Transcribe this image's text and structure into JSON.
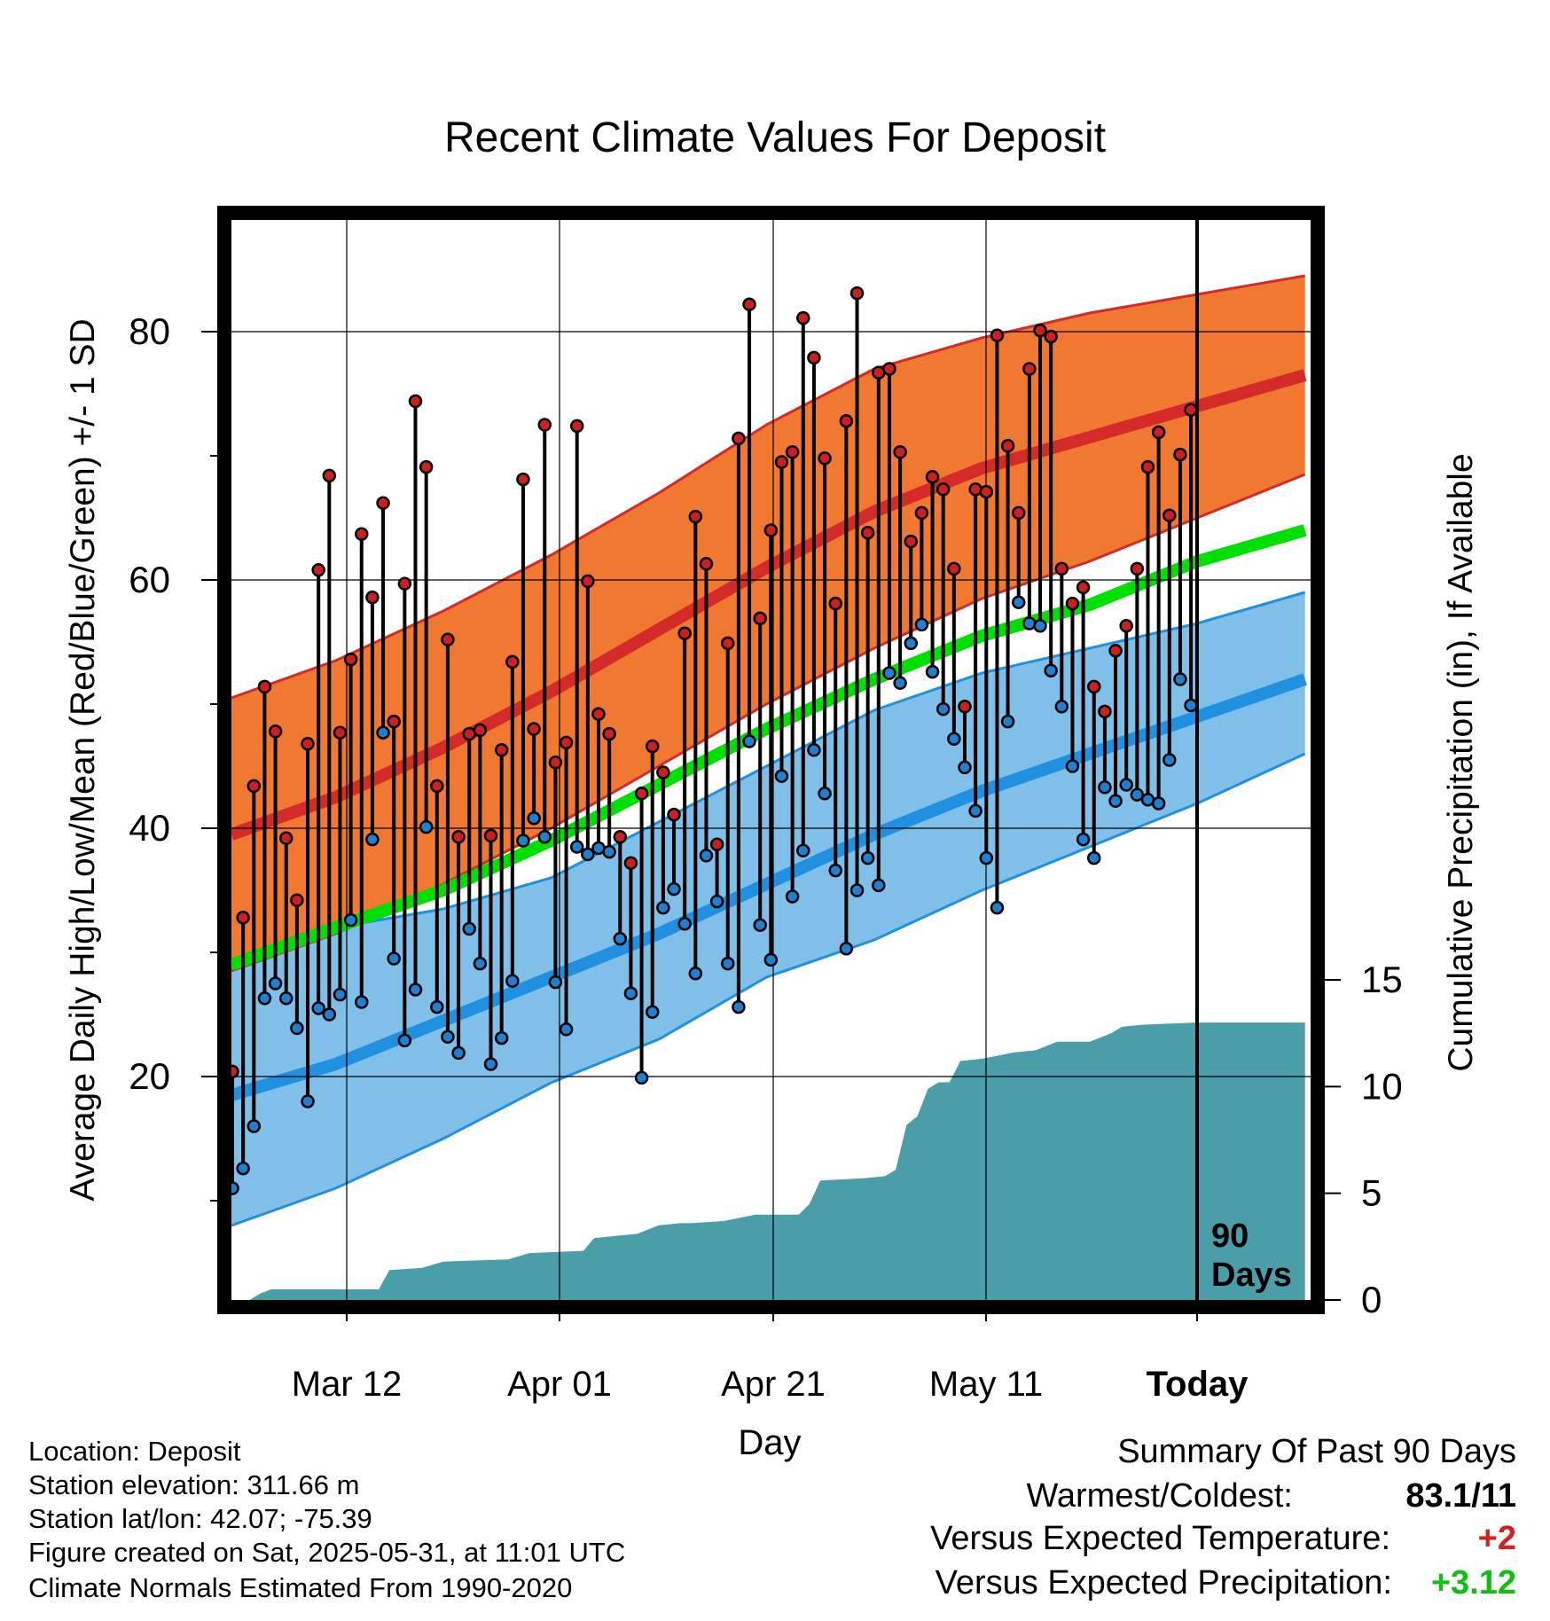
{
  "title": "Recent Climate Values For Deposit",
  "chart_data": {
    "type": "line",
    "title": "Recent Climate Values For Deposit",
    "xlabel": "Day",
    "ylabel_left": "Average Daily High/Low/Mean (Red/Blue/Green) +/- 1 SD",
    "ylabel_right": "Cumulative Precipitation (in), If Available",
    "x_ticks": [
      "Mar 12",
      "Apr 01",
      "Apr 21",
      "May 11",
      "Today"
    ],
    "y_left_ticks": [
      "20",
      "40",
      "60",
      "80"
    ],
    "y_left_range": [
      2,
      89
    ],
    "y_right_ticks": [
      "0",
      "5",
      "10",
      "15"
    ],
    "y_right_range": [
      0,
      15
    ],
    "today_marker_label": [
      "90",
      "Days"
    ],
    "colors": {
      "high_band": "#f07830",
      "high_mean": "#d42a2a",
      "high_edge": "#d42a2a",
      "low_band": "#80c0e8",
      "low_mean": "#2090e0",
      "low_edge": "#2090e0",
      "mean": "#00e000",
      "precip": "#4a9ea8",
      "high_point": "#cc2020",
      "low_point": "#2080d0"
    },
    "normals": {
      "days": [
        0,
        10,
        20,
        30,
        40,
        50,
        60,
        70,
        80,
        90,
        100
      ],
      "high_mean": [
        39.5,
        42.5,
        46.5,
        51,
        56,
        61,
        65.5,
        69,
        71.5,
        74,
        76.5
      ],
      "high_upper": [
        50.5,
        53.5,
        57.5,
        62,
        67,
        72.5,
        77,
        79.5,
        81.5,
        83,
        84.5
      ],
      "high_lower": [
        28.5,
        31.5,
        35.5,
        40,
        45,
        50,
        54.5,
        58.5,
        61.5,
        65,
        68.5
      ],
      "mean": [
        29,
        32,
        35,
        39,
        43.5,
        48,
        52,
        55.5,
        58,
        61.5,
        64
      ],
      "low_mean": [
        18.5,
        21,
        24.5,
        28,
        31.5,
        35.5,
        39.5,
        43,
        46,
        49,
        52
      ],
      "low_upper": [
        29,
        32,
        33.5,
        36,
        40.5,
        45,
        49.5,
        52.5,
        54.5,
        56.5,
        59
      ],
      "low_lower": [
        8,
        11,
        15,
        19.5,
        23,
        28,
        31,
        35,
        38.5,
        42,
        46
      ]
    },
    "observations": {
      "day_start": 0,
      "highs": [
        20.4,
        32.8,
        43.4,
        51.4,
        47.8,
        39.2,
        34.2,
        46.8,
        60.8,
        68.4,
        47.7,
        53.6,
        63.7,
        58.6,
        66.2,
        48.6,
        59.7,
        74.4,
        69.1,
        43.4,
        55.2,
        39.3,
        47.6,
        47.9,
        39.4,
        46.3,
        53.4,
        68.1,
        48.0,
        72.5,
        45.3,
        46.9,
        72.4,
        59.9,
        49.2,
        47.6,
        39.3,
        37.2,
        42.8,
        46.6,
        44.5,
        41.1,
        55.7,
        65.1,
        61.3,
        38.7,
        54.9,
        71.4,
        82.2,
        56.9,
        64.0,
        69.5,
        70.3,
        81.1,
        77.9,
        69.8,
        58.1,
        72.8,
        83.1,
        63.8,
        76.7,
        77.0,
        70.3,
        63.1,
        65.4,
        68.3,
        67.3,
        60.9,
        49.8,
        67.3,
        67.1,
        79.7,
        70.8,
        65.4,
        77.0,
        80.1,
        79.6,
        60.9,
        58.1,
        59.4,
        51.4,
        49.4,
        54.3,
        56.3,
        60.9,
        69.1,
        71.9,
        65.2,
        70.1,
        73.7
      ],
      "lows": [
        11.0,
        12.6,
        16.0,
        26.3,
        27.5,
        26.3,
        23.9,
        18.0,
        25.5,
        25.0,
        26.6,
        32.6,
        26.0,
        39.1,
        47.7,
        29.5,
        22.9,
        27.0,
        40.1,
        25.6,
        23.2,
        21.9,
        31.9,
        29.1,
        21.0,
        23.1,
        27.7,
        39.0,
        40.8,
        39.3,
        27.6,
        23.8,
        38.5,
        37.9,
        38.4,
        38.1,
        31.1,
        26.7,
        19.9,
        25.2,
        33.6,
        35.1,
        32.3,
        28.3,
        37.8,
        34.1,
        29.1,
        25.6,
        47.0,
        32.2,
        29.4,
        44.2,
        34.5,
        38.2,
        46.3,
        42.8,
        36.6,
        30.3,
        35.0,
        37.6,
        35.4,
        52.5,
        51.7,
        54.9,
        56.4,
        52.6,
        49.6,
        47.2,
        44.9,
        41.4,
        37.6,
        33.6,
        48.6,
        58.2,
        56.5,
        56.3,
        52.7,
        49.8,
        45.0,
        39.1,
        37.6,
        43.3,
        42.2,
        43.5,
        42.7,
        42.3,
        42.0,
        45.5,
        52.0,
        49.9
      ]
    },
    "precipitation": {
      "days": [
        0,
        2,
        3,
        4,
        14,
        15,
        18,
        20,
        26,
        28,
        33,
        34,
        36,
        38,
        40,
        42,
        43,
        46,
        49,
        50,
        53,
        54,
        55,
        59,
        61,
        62,
        63,
        64,
        65,
        66,
        67,
        68,
        70,
        71,
        73,
        75,
        77,
        80,
        82,
        83,
        85,
        90,
        100
      ],
      "values": [
        0,
        0,
        0.3,
        0.5,
        0.5,
        1.4,
        1.5,
        1.8,
        1.9,
        2.2,
        2.3,
        2.9,
        3.0,
        3.1,
        3.5,
        3.6,
        3.6,
        3.7,
        4.0,
        4.0,
        4.0,
        4.5,
        5.6,
        5.7,
        5.8,
        6.1,
        8.2,
        8.6,
        9.9,
        10.2,
        10.2,
        11.2,
        11.3,
        11.4,
        11.6,
        11.7,
        12.1,
        12.1,
        12.5,
        12.8,
        12.9,
        13,
        13
      ]
    }
  },
  "info": {
    "location": "Location: Deposit",
    "elevation": "Station elevation: 311.66 m",
    "latlon": "Station lat/lon: 42.07; -75.39",
    "created": "Figure created on Sat, 2025-05-31, at 11:01 UTC",
    "normals": "Climate Normals Estimated From 1990-2020"
  },
  "summary": {
    "heading": "Summary Of Past 90 Days",
    "warmest_label": "Warmest/Coldest:",
    "warmest_value": "83.1/11",
    "temp_label": "Versus Expected Temperature:",
    "temp_value": "+2",
    "precip_label": "Versus Expected Precipitation:",
    "precip_value": "+3.12",
    "temp_color": "#d42020",
    "precip_color": "#10c010"
  }
}
